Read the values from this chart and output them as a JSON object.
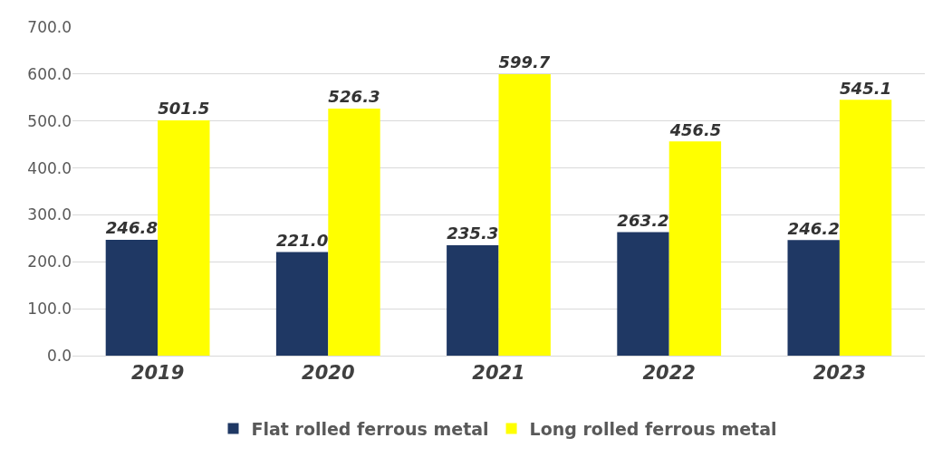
{
  "chart_data": {
    "type": "bar",
    "categories": [
      "2019",
      "2020",
      "2021",
      "2022",
      "2023"
    ],
    "series": [
      {
        "name": "Flat rolled ferrous metal",
        "color": "#1f3864",
        "values": [
          246.8,
          221.0,
          235.3,
          263.2,
          246.2
        ],
        "value_labels": [
          "246.8",
          "221.0",
          "235.3",
          "263.2",
          "246.2"
        ]
      },
      {
        "name": "Long rolled ferrous metal",
        "color": "#ffff00",
        "values": [
          501.5,
          526.3,
          599.7,
          456.5,
          545.1
        ],
        "value_labels": [
          "501.5",
          "526.3",
          "599.7",
          "456.5",
          "545.1"
        ]
      }
    ],
    "ylim": [
      0,
      700
    ],
    "yticks": [
      {
        "value": 0,
        "label": "0.0"
      },
      {
        "value": 100,
        "label": "100.0"
      },
      {
        "value": 200,
        "label": "200.0"
      },
      {
        "value": 300,
        "label": "300.0"
      },
      {
        "value": 400,
        "label": "400.0"
      },
      {
        "value": 500,
        "label": "500.0"
      },
      {
        "value": 600,
        "label": "600.0"
      },
      {
        "value": 700,
        "label": "700.0"
      }
    ],
    "grid": "y",
    "legend": "bottom"
  }
}
